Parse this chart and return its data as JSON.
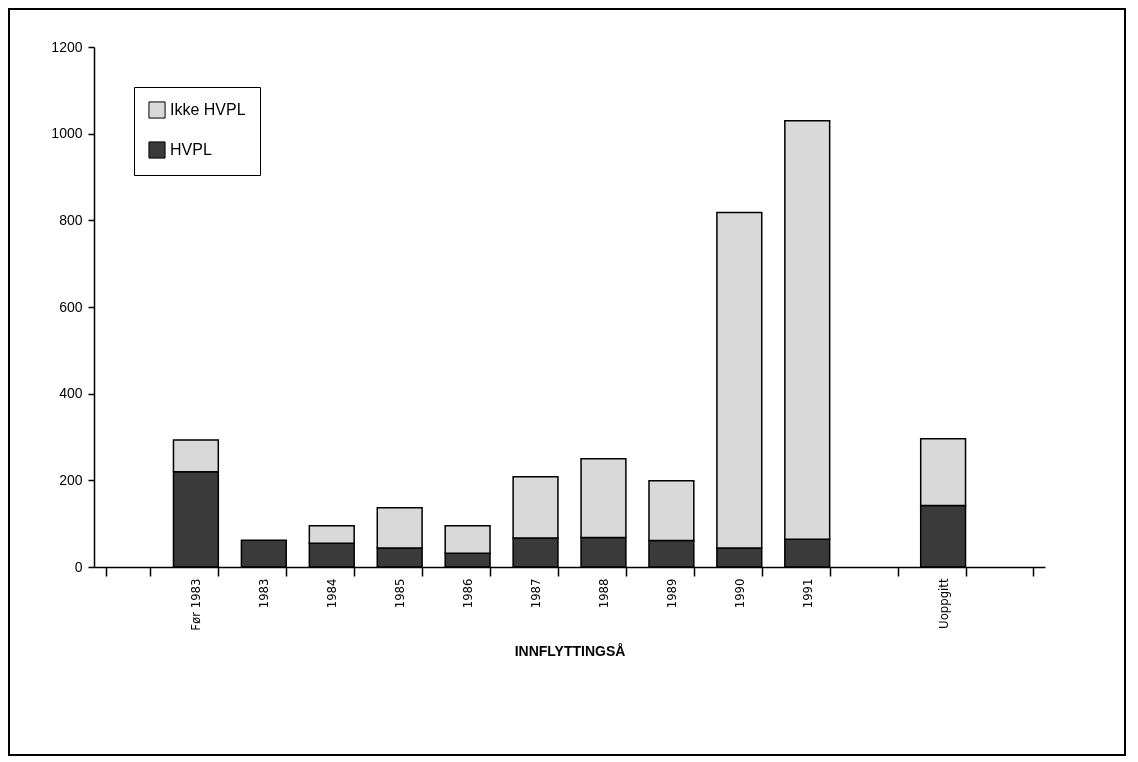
{
  "chart_data": {
    "type": "bar",
    "stacked": true,
    "xlabel": "INNFLYTTINGSÅ",
    "categories": [
      null,
      "Før 1983",
      "1983",
      "1984",
      "1985",
      "1986",
      "1987",
      "1988",
      "1989",
      "1990",
      "1991",
      null,
      "Uoppgitt",
      null
    ],
    "series": [
      {
        "name": "HVPL",
        "color": "#3a3a3a",
        "values": [
          null,
          220,
          62,
          55,
          44,
          32,
          67,
          68,
          61,
          44,
          64,
          null,
          142,
          null
        ]
      },
      {
        "name": "Ikke HVPL",
        "color": "#d9d9d9",
        "values": [
          null,
          73,
          null,
          40,
          93,
          63,
          141,
          182,
          138,
          774,
          966,
          null,
          154,
          null
        ]
      }
    ],
    "ylim": [
      0,
      1200
    ],
    "yticks": [
      0,
      200,
      400,
      600,
      800,
      1000,
      1200
    ],
    "grid": false,
    "legend": "top left"
  }
}
